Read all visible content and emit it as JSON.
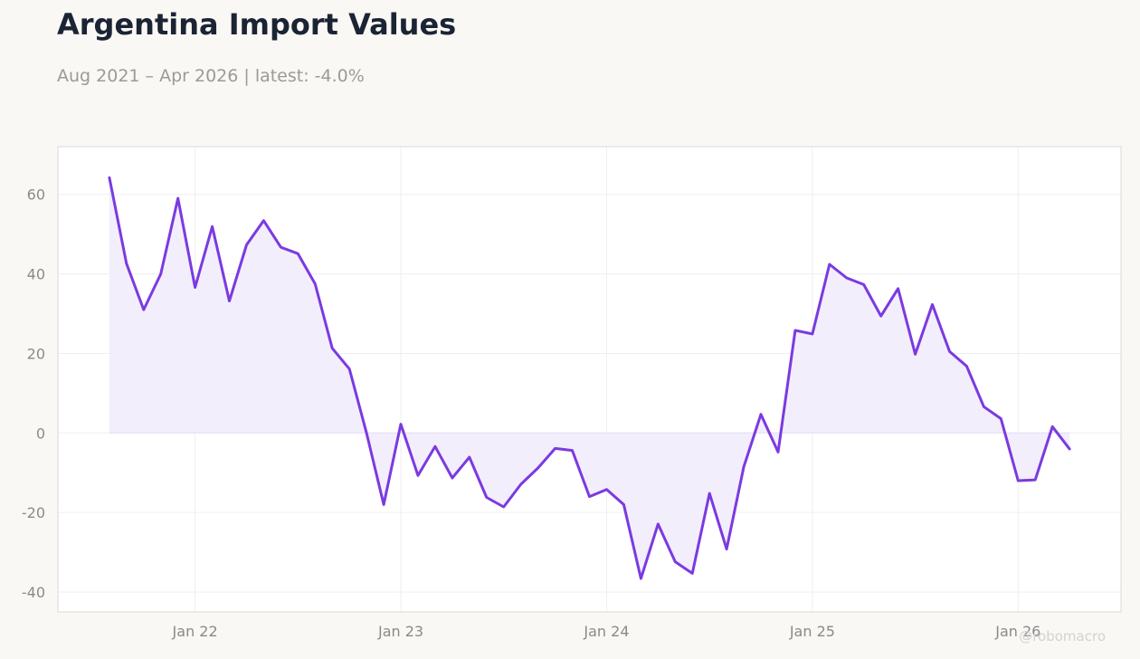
{
  "header": {
    "title": "Argentina Import Values",
    "subtitle": "Aug 2021 – Apr 2026 | latest: -4.0%"
  },
  "watermark": "@robomacro",
  "colors": {
    "line": "#7b3ae0",
    "fill": "#f1ecfc",
    "background": "#f9f8f5",
    "plot_background": "#ffffff",
    "grid": "#f0eff0"
  },
  "chart_data": {
    "type": "area",
    "title": "Argentina Import Values",
    "subtitle": "Aug 2021 – Apr 2026 | latest: -4.0%",
    "xlabel": "",
    "ylabel": "",
    "ylim": [
      -45,
      72
    ],
    "xlim": [
      "2021-05",
      "2026-07"
    ],
    "grid": true,
    "y_ticks": [
      -40,
      -20,
      0,
      20,
      40,
      60
    ],
    "x_ticks": [
      {
        "date": "2022-01",
        "label": "Jan 22"
      },
      {
        "date": "2023-01",
        "label": "Jan 23"
      },
      {
        "date": "2024-01",
        "label": "Jan 24"
      },
      {
        "date": "2025-01",
        "label": "Jan 25"
      },
      {
        "date": "2026-01",
        "label": "Jan 26"
      }
    ],
    "x": [
      "2021-08",
      "2021-09",
      "2021-10",
      "2021-11",
      "2021-12",
      "2022-01",
      "2022-02",
      "2022-03",
      "2022-04",
      "2022-05",
      "2022-06",
      "2022-07",
      "2022-08",
      "2022-09",
      "2022-10",
      "2022-11",
      "2022-12",
      "2023-01",
      "2023-02",
      "2023-03",
      "2023-04",
      "2023-05",
      "2023-06",
      "2023-07",
      "2023-08",
      "2023-09",
      "2023-10",
      "2023-11",
      "2023-12",
      "2024-01",
      "2024-02",
      "2024-03",
      "2024-04",
      "2024-05",
      "2024-06",
      "2024-07",
      "2024-08",
      "2024-09",
      "2024-10",
      "2024-11",
      "2024-12",
      "2025-01",
      "2025-02",
      "2025-03",
      "2025-04",
      "2025-05",
      "2025-06",
      "2025-07",
      "2025-08",
      "2025-09",
      "2025-10",
      "2025-11",
      "2025-12",
      "2026-01",
      "2026-02",
      "2026-03",
      "2026-04"
    ],
    "series": [
      {
        "values": [
          64.2,
          42.6,
          31.0,
          40.0,
          59.0,
          36.6,
          51.9,
          33.2,
          47.3,
          53.4,
          46.7,
          45.1,
          37.5,
          21.3,
          16.1,
          0.0,
          -18.0,
          2.2,
          -10.7,
          -3.4,
          -11.3,
          -6.1,
          -16.2,
          -18.6,
          -12.9,
          -8.8,
          -3.9,
          -4.4,
          -16.0,
          -14.2,
          -18.0,
          -36.6,
          -22.9,
          -32.4,
          -35.3,
          -15.2,
          -29.2,
          -8.5,
          4.7,
          -4.8,
          25.8,
          24.9,
          42.4,
          39.0,
          37.3,
          29.4,
          36.3,
          19.8,
          32.3,
          20.5,
          16.8,
          6.6,
          3.6,
          -12.0,
          -11.8,
          1.6,
          -4.0
        ]
      }
    ]
  }
}
